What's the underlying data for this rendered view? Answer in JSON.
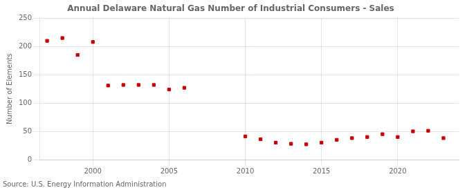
{
  "chart_data": {
    "type": "scatter",
    "title": "Annual Delaware Natural Gas Number of Industrial Consumers - Sales",
    "ylabel": "Number of Elements",
    "annotation": "Source: U.S. Energy Information Administration",
    "x": [
      1997,
      1998,
      1999,
      2000,
      2001,
      2002,
      2003,
      2004,
      2005,
      2006,
      2010,
      2011,
      2012,
      2013,
      2014,
      2015,
      2016,
      2017,
      2018,
      2019,
      2020,
      2021,
      2022,
      2023
    ],
    "values": [
      210,
      215,
      185,
      208,
      131,
      132,
      132,
      132,
      124,
      127,
      41,
      36,
      30,
      28,
      27,
      30,
      35,
      38,
      40,
      45,
      40,
      50,
      51,
      38
    ],
    "color": "#cc0000",
    "marker": "square",
    "xlim": [
      1996.5,
      2024
    ],
    "xticks": [
      2000,
      2005,
      2010,
      2015,
      2020
    ],
    "ylim": [
      0,
      250
    ],
    "yticks": [
      0,
      50,
      100,
      150,
      200,
      250
    ],
    "grid": true
  }
}
